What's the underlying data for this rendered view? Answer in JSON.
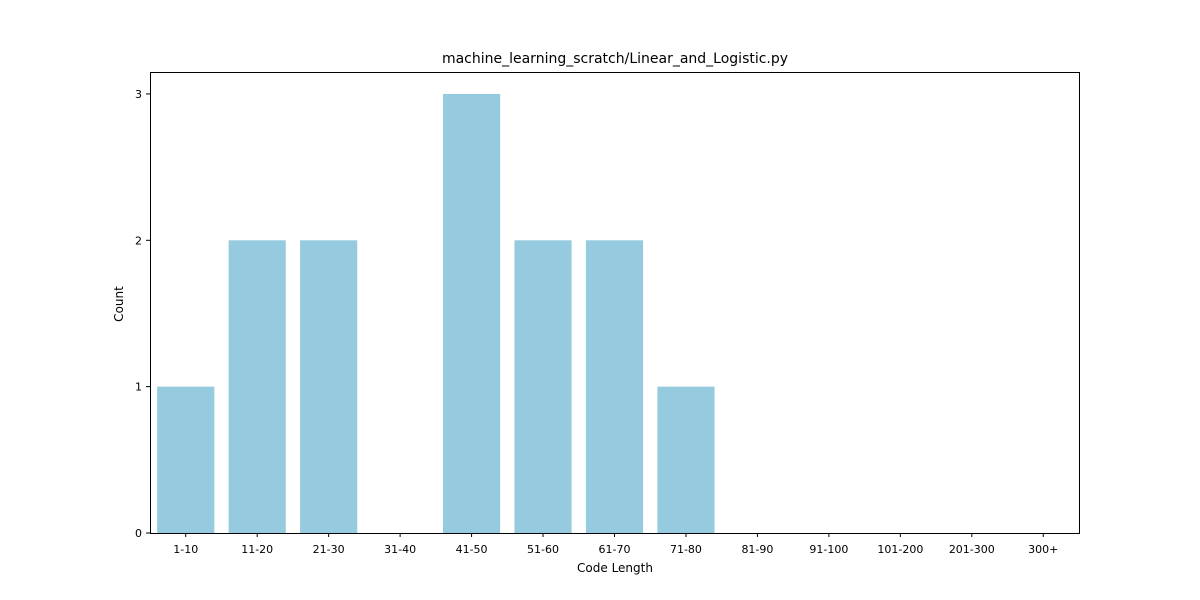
{
  "chart_data": {
    "type": "bar",
    "title": "machine_learning_scratch/Linear_and_Logistic.py",
    "xlabel": "Code Length",
    "ylabel": "Count",
    "categories": [
      "1-10",
      "11-20",
      "21-30",
      "31-40",
      "41-50",
      "51-60",
      "61-70",
      "71-80",
      "81-90",
      "91-100",
      "101-200",
      "201-300",
      "300+"
    ],
    "values": [
      1,
      2,
      2,
      0,
      3,
      2,
      2,
      1,
      0,
      0,
      0,
      0,
      0
    ],
    "yticks": [
      0,
      1,
      2,
      3
    ],
    "ylim": [
      0,
      3.15
    ],
    "bar_color": "#96cade",
    "grid": false,
    "legend": "none"
  }
}
